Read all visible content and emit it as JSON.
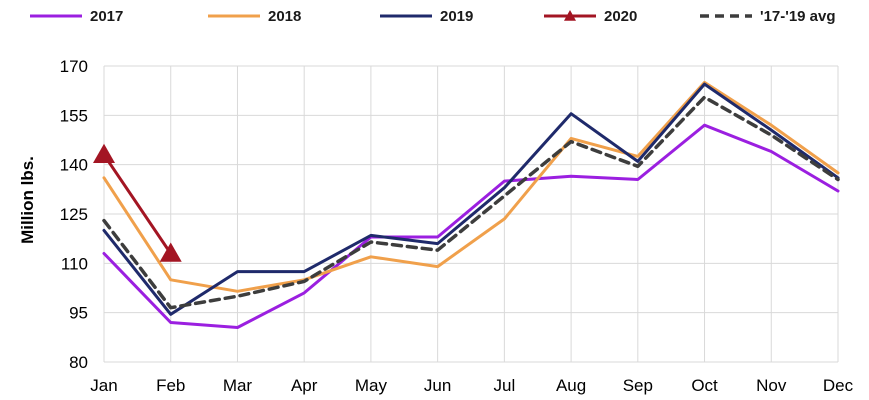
{
  "chart_data": {
    "type": "line",
    "title": "",
    "xlabel": "",
    "ylabel": "Million lbs.",
    "categories": [
      "Jan",
      "Feb",
      "Mar",
      "Apr",
      "May",
      "Jun",
      "Jul",
      "Aug",
      "Sep",
      "Oct",
      "Nov",
      "Dec"
    ],
    "yticks": [
      "80",
      "95",
      "110",
      "125",
      "140",
      "155",
      "170"
    ],
    "ylim": [
      80,
      170
    ],
    "grid": true,
    "legend_position": "top",
    "series": [
      {
        "name": "2017",
        "color": "#9b1fe0",
        "style": "solid",
        "marker": "none",
        "values": [
          113,
          92,
          90.5,
          101,
          118,
          118,
          135,
          136.5,
          135.5,
          152,
          144,
          132
        ]
      },
      {
        "name": "2018",
        "color": "#f0a04b",
        "style": "solid",
        "marker": "none",
        "values": [
          136,
          105,
          101.5,
          105,
          112,
          109,
          123.5,
          148,
          142.5,
          165,
          152,
          137.5
        ]
      },
      {
        "name": "2019",
        "color": "#1f2a6b",
        "style": "solid",
        "marker": "none",
        "values": [
          120,
          94.5,
          107.5,
          107.5,
          118.5,
          116,
          133,
          155.5,
          141,
          164.5,
          150.5,
          136
        ]
      },
      {
        "name": "2020",
        "color": "#a31523",
        "style": "solid",
        "marker": "triangle",
        "values": [
          143,
          113,
          null,
          null,
          null,
          null,
          null,
          null,
          null,
          null,
          null,
          null
        ]
      },
      {
        "name": "'17-'19 avg",
        "color": "#3d3d3d",
        "style": "dashed",
        "marker": "none",
        "values": [
          123,
          96.5,
          100,
          104.5,
          116.5,
          114,
          130.5,
          147,
          139.5,
          160.5,
          149,
          135.5
        ]
      }
    ]
  }
}
